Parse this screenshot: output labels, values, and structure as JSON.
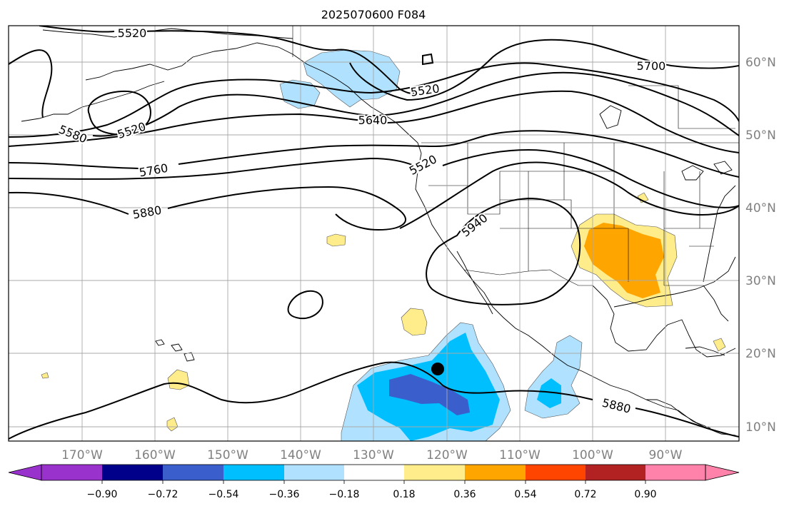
{
  "title": "2025070600 F084",
  "lon_labels": [
    "170°W",
    "160°W",
    "150°W",
    "140°W",
    "130°W",
    "120°W",
    "110°W",
    "100°W",
    "90°W"
  ],
  "lat_labels": [
    "60°N",
    "50°N",
    "40°N",
    "30°N",
    "20°N",
    "10°N"
  ],
  "contour_labels": [
    "5520",
    "5520",
    "5520",
    "5520",
    "5580",
    "5640",
    "5700",
    "5760",
    "5880",
    "5880",
    "5940"
  ],
  "colorbar": {
    "ticks": [
      "−0.90",
      "−0.72",
      "−0.54",
      "−0.36",
      "−0.18",
      "0.18",
      "0.36",
      "0.54",
      "0.72",
      "0.90"
    ],
    "colors": [
      "#9932cc",
      "#00008b",
      "#3a5fcd",
      "#00bfff",
      "#b0e2ff",
      "#ffffff",
      "#ffec8b",
      "#ffa500",
      "#ff4500",
      "#b22222",
      "#ff82ab"
    ]
  },
  "marker": {
    "name": "storm-center",
    "lon": -120.2,
    "lat": 17.8
  },
  "colors": {
    "land_line": "#000000",
    "grid": "#a9a9a9",
    "label_gray": "#808080"
  }
}
